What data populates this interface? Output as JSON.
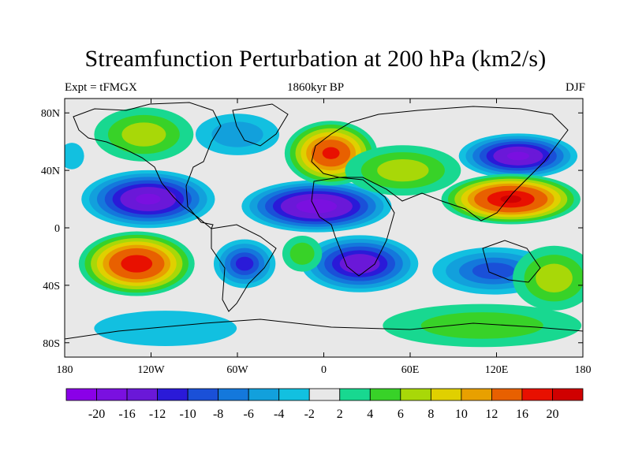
{
  "header": {
    "title": "Streamfunction Perturbation at 200 hPa (km2/s)",
    "left": "Expt = tFMGX",
    "center": "1860kyr BP",
    "right": "DJF"
  },
  "axes": {
    "x_ticks": [
      "180",
      "120W",
      "60W",
      "0",
      "60E",
      "120E",
      "180"
    ],
    "x_values": [
      -180,
      -120,
      -60,
      0,
      60,
      120,
      180
    ],
    "y_ticks": [
      "80N",
      "40N",
      "0",
      "40S",
      "80S"
    ],
    "y_values": [
      80,
      40,
      0,
      -40,
      -80
    ]
  },
  "colorbar": {
    "labels": [
      "-20",
      "-16",
      "-12",
      "-10",
      "-8",
      "-6",
      "-4",
      "-2",
      "2",
      "4",
      "6",
      "8",
      "10",
      "12",
      "16",
      "20"
    ],
    "colors": [
      "#8a00e8",
      "#7a10e0",
      "#6a18d8",
      "#2a1ad8",
      "#1a50d8",
      "#1478dc",
      "#12a0dc",
      "#12c0e0",
      "#e8e8e8",
      "#18d890",
      "#38d228",
      "#a8d808",
      "#e0d000",
      "#e8a000",
      "#e86000",
      "#e81000",
      "#d00000"
    ]
  },
  "map_data": {
    "projection": "equirectangular",
    "lon_range": [
      -180,
      180
    ],
    "lat_range": [
      -90,
      90
    ],
    "blobs": [
      {
        "lon": -122,
        "lat": 20,
        "rx": 45,
        "ry": 18,
        "level": -18
      },
      {
        "lon": -5,
        "lat": 15,
        "rx": 50,
        "ry": 16,
        "level": -20
      },
      {
        "lon": 135,
        "lat": 50,
        "rx": 40,
        "ry": 14,
        "level": -18
      },
      {
        "lon": -55,
        "lat": -25,
        "rx": 22,
        "ry": 16,
        "level": -12
      },
      {
        "lon": 25,
        "lat": -25,
        "rx": 40,
        "ry": 18,
        "level": -16
      },
      {
        "lon": 118,
        "lat": -30,
        "rx": 45,
        "ry": 16,
        "level": -10
      },
      {
        "lon": -60,
        "lat": 65,
        "rx": 35,
        "ry": 16,
        "level": -6
      },
      {
        "lon": -175,
        "lat": 50,
        "rx": 12,
        "ry": 12,
        "level": -4
      },
      {
        "lon": -110,
        "lat": -70,
        "rx": 70,
        "ry": 16,
        "level": -4
      },
      {
        "lon": 5,
        "lat": 52,
        "rx": 28,
        "ry": 18,
        "level": 16
      },
      {
        "lon": 130,
        "lat": 20,
        "rx": 42,
        "ry": 14,
        "level": 20
      },
      {
        "lon": -130,
        "lat": -25,
        "rx": 35,
        "ry": 18,
        "level": 18
      },
      {
        "lon": -125,
        "lat": 65,
        "rx": 30,
        "ry": 15,
        "level": 6
      },
      {
        "lon": 55,
        "lat": 40,
        "rx": 35,
        "ry": 14,
        "level": 6
      },
      {
        "lon": 110,
        "lat": -68,
        "rx": 60,
        "ry": 12,
        "level": 4
      },
      {
        "lon": 160,
        "lat": -35,
        "rx": 25,
        "ry": 18,
        "level": 6
      },
      {
        "lon": -15,
        "lat": -18,
        "rx": 12,
        "ry": 10,
        "level": 4
      }
    ]
  }
}
